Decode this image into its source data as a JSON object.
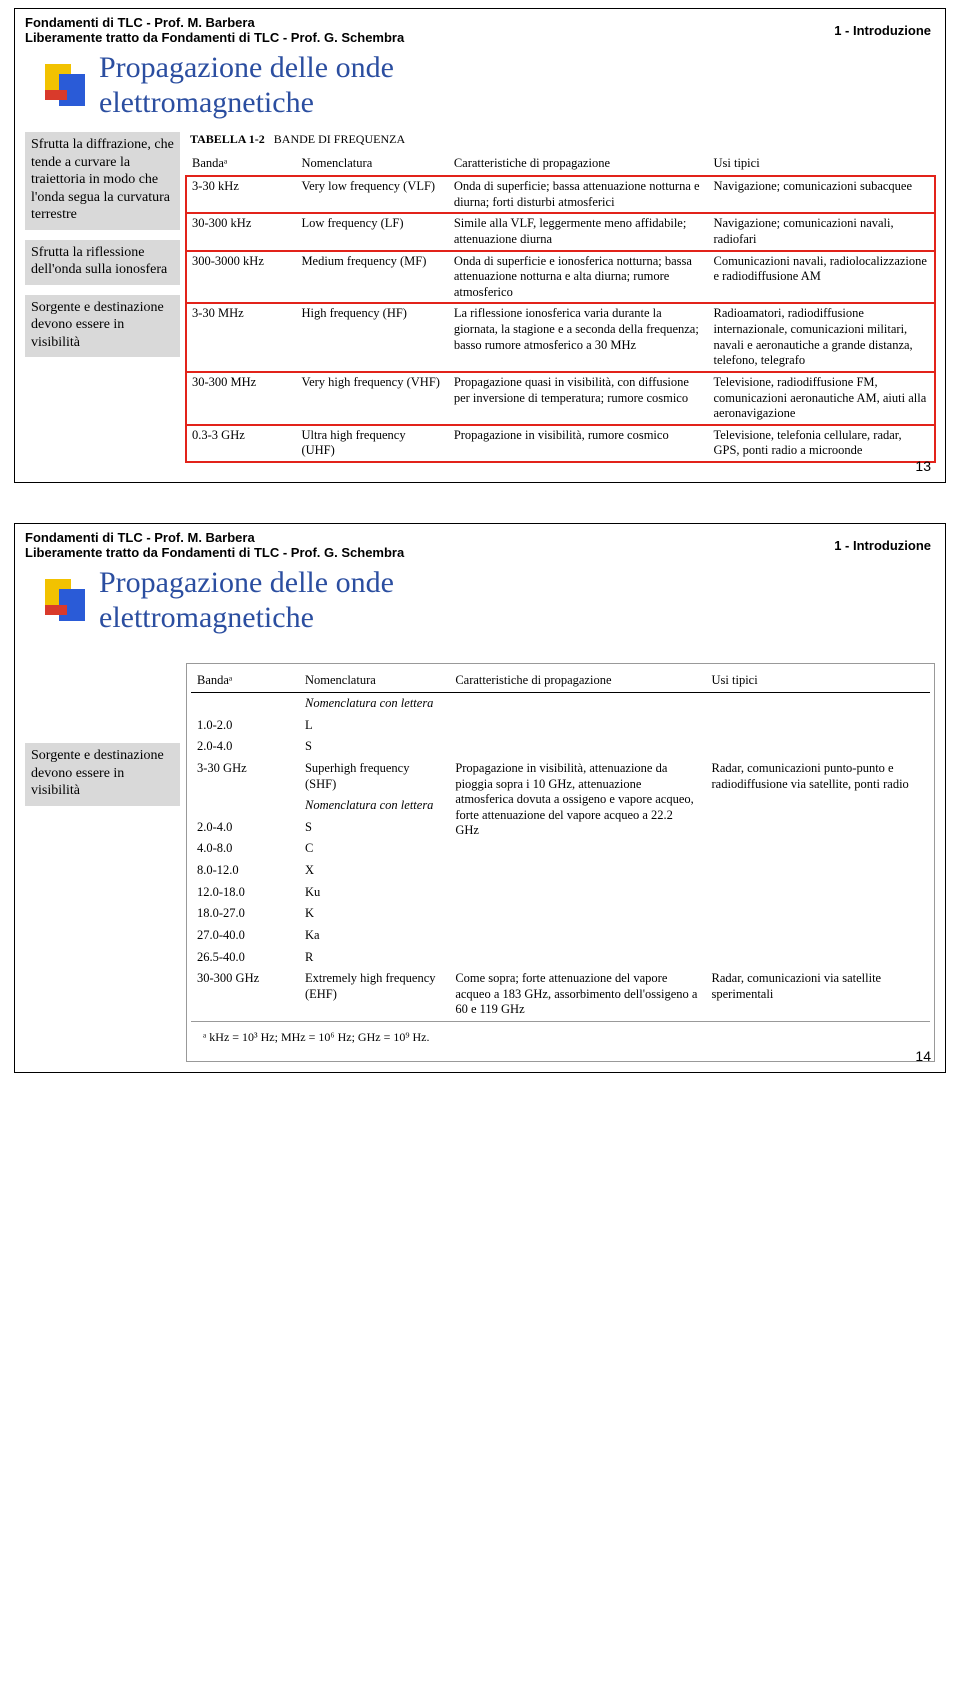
{
  "header": {
    "line1": "Fondamenti di TLC - Prof. M. Barbera",
    "line2": "Liberamente tratto da Fondamenti di TLC - Prof. G. Schembra",
    "right": "1 - Introduzione"
  },
  "slide1": {
    "title_line1": "Propagazione delle onde",
    "title_line2": "elettromagnetiche",
    "caption_label": "TABELLA 1-2",
    "caption_text": "BANDE DI FREQUENZA",
    "columns": {
      "band": "Bandaᵃ",
      "nomen": "Nomenclatura",
      "carat": "Caratteristiche di propagazione",
      "usi": "Usi tipici"
    },
    "notes": {
      "n1": "Sfrutta la diffrazione, che tende a curvare la traiettoria in modo che l'onda segua la curvatura terrestre",
      "n2": "Sfrutta la riflessione dell'onda sulla ionosfera",
      "n3": "Sorgente e destinazione devono essere in visibilità"
    },
    "rows": [
      {
        "band": "3-30 kHz",
        "nom": "Very low frequency (VLF)",
        "car": "Onda di superficie; bassa attenuazione notturna e diurna; forti disturbi atmosferici",
        "usi": "Navigazione; comunicazioni subacquee",
        "hl": true
      },
      {
        "band": "30-300 kHz",
        "nom": "Low frequency (LF)",
        "car": "Simile alla VLF, leggermente meno affidabile; attenuazione diurna",
        "usi": "Navigazione; comunicazioni navali, radiofari",
        "hl": true
      },
      {
        "band": "300-3000 kHz",
        "nom": "Medium frequency (MF)",
        "car": "Onda di superficie e ionosferica notturna; bassa attenuazione notturna e alta diurna; rumore atmosferico",
        "usi": "Comunicazioni navali, radiolocalizzazione e radiodiffusione AM",
        "hl": true
      },
      {
        "band": "3-30 MHz",
        "nom": "High frequency (HF)",
        "car": "La riflessione ionosferica varia durante la giornata, la stagione e a seconda della frequenza; basso rumore atmosferico a 30 MHz",
        "usi": "Radioamatori, radiodiffusione internazionale, comunicazioni militari, navali e aeronautiche a grande distanza, telefono, telegrafo",
        "hl": true
      },
      {
        "band": "30-300 MHz",
        "nom": "Very high frequency (VHF)",
        "car": "Propagazione quasi in visibilità, con diffusione per inversione di temperatura; rumore cosmico",
        "usi": "Televisione, radiodiffusione FM, comunicazioni aeronautiche AM, aiuti alla aeronavigazione",
        "hl": true
      },
      {
        "band": "0.3-3 GHz",
        "nom": "Ultra high frequency (UHF)",
        "car": "Propagazione in visibilità, rumore cosmico",
        "usi": "Televisione, telefonia cellulare, radar, GPS, ponti radio a microonde",
        "hl": true
      }
    ],
    "page_num": "13"
  },
  "slide2": {
    "title_line1": "Propagazione delle onde",
    "title_line2": "elettromagnetiche",
    "columns": {
      "band": "Bandaᵃ",
      "nomen": "Nomenclatura",
      "carat": "Caratteristiche di propagazione",
      "usi": "Usi tipici"
    },
    "note": "Sorgente e destinazione devono essere in visibilità",
    "subhead1": "Nomenclatura con lettera",
    "letter_rows1": [
      {
        "band": "1.0-2.0",
        "nom": "L"
      },
      {
        "band": "2.0-4.0",
        "nom": "S"
      }
    ],
    "shf_row": {
      "band": "3-30 GHz",
      "nom": "Superhigh frequency (SHF)",
      "car": "Propagazione in visibilità, attenuazione da pioggia sopra i 10 GHz, attenuazione atmosferica dovuta a ossigeno e vapore acqueo, forte attenuazione del vapore acqueo a 22.2 GHz",
      "usi": "Radar, comunicazioni punto-punto e radiodiffusione via satellite, ponti radio"
    },
    "subhead2": "Nomenclatura con lettera",
    "letter_rows2": [
      {
        "band": "2.0-4.0",
        "nom": "S"
      },
      {
        "band": "4.0-8.0",
        "nom": "C"
      },
      {
        "band": "8.0-12.0",
        "nom": "X"
      },
      {
        "band": "12.0-18.0",
        "nom": "Ku"
      },
      {
        "band": "18.0-27.0",
        "nom": "K"
      },
      {
        "band": "27.0-40.0",
        "nom": "Ka"
      },
      {
        "band": "26.5-40.0",
        "nom": "R"
      }
    ],
    "ehf_row": {
      "band": "30-300 GHz",
      "nom": "Extremely high frequency (EHF)",
      "car": "Come sopra; forte attenuazione del vapore acqueo a 183 GHz, assorbimento dell'ossigeno a 60 e 119 GHz",
      "usi": "Radar, comunicazioni via satellite sperimentali"
    },
    "footnote": "ᵃ kHz = 10³ Hz; MHz = 10⁶ Hz; GHz = 10⁹ Hz.",
    "page_num": "14"
  },
  "colors": {
    "highlight": "#e2231a",
    "title": "#2b4ea0",
    "note_bg": "#d9d9d9"
  }
}
